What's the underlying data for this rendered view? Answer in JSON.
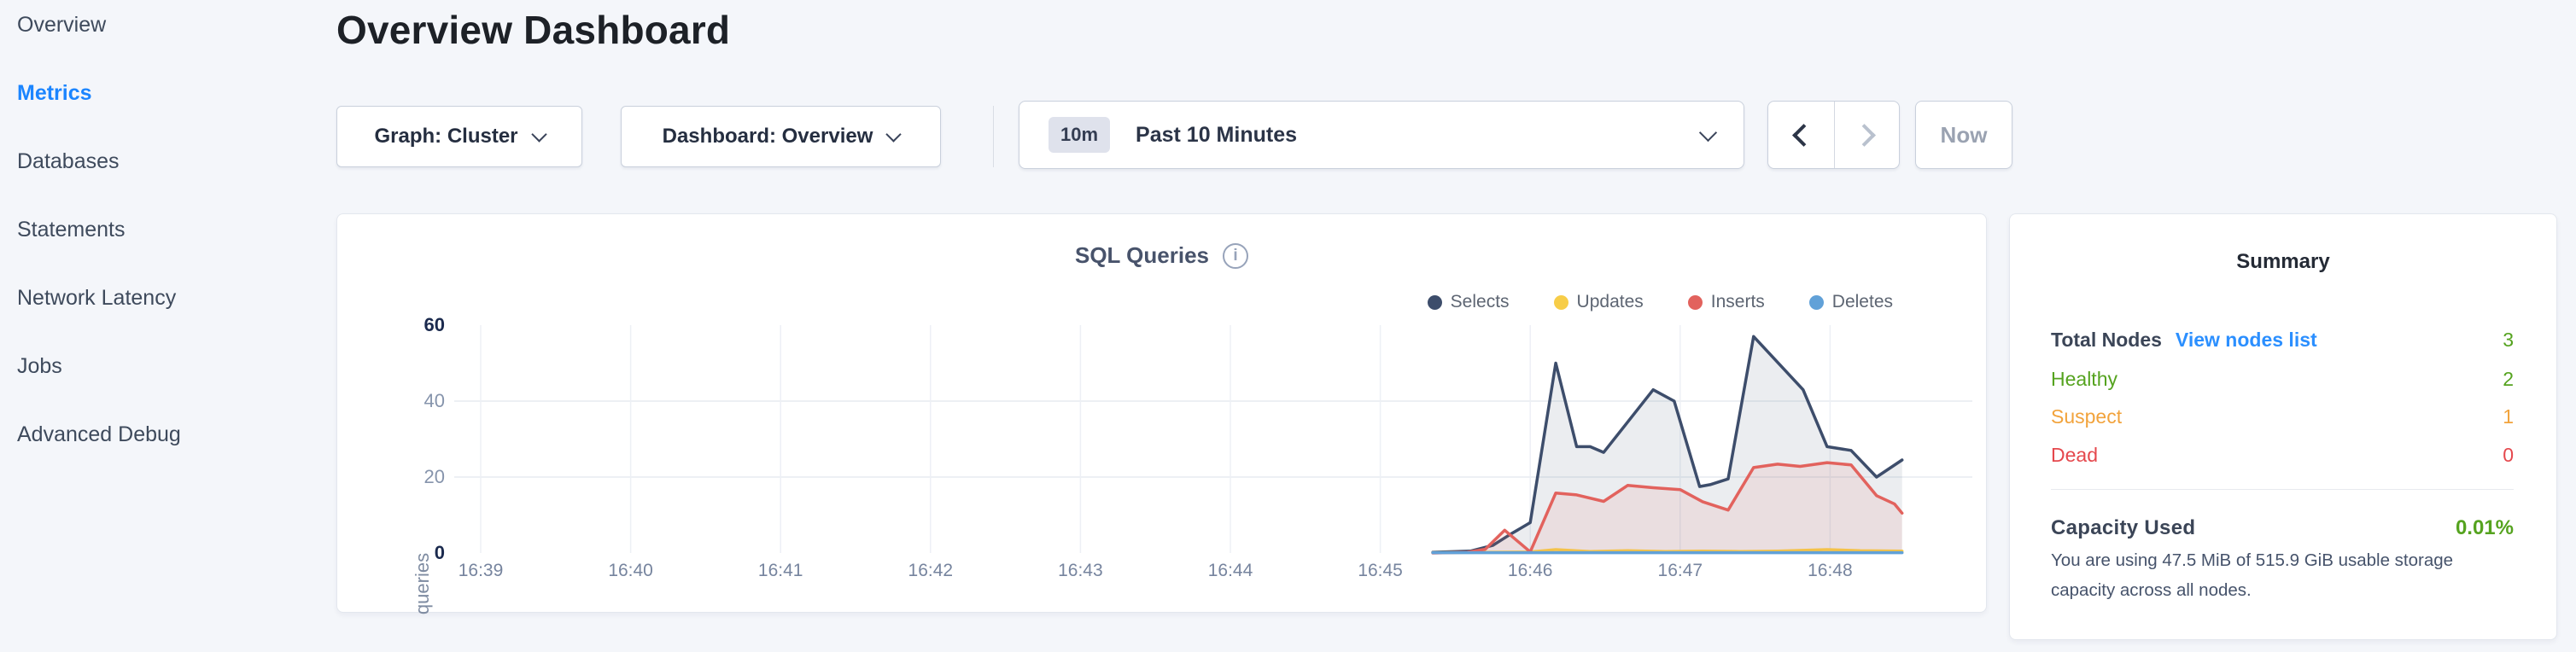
{
  "sidebar": {
    "items": [
      {
        "label": "Overview",
        "active": false
      },
      {
        "label": "Metrics",
        "active": true
      },
      {
        "label": "Databases",
        "active": false
      },
      {
        "label": "Statements",
        "active": false
      },
      {
        "label": "Network Latency",
        "active": false
      },
      {
        "label": "Jobs",
        "active": false
      },
      {
        "label": "Advanced Debug",
        "active": false
      }
    ]
  },
  "header": {
    "title": "Overview Dashboard"
  },
  "toolbar": {
    "graph_dropdown": "Graph: Cluster",
    "dashboard_dropdown": "Dashboard: Overview",
    "time_badge": "10m",
    "time_label": "Past 10 Minutes",
    "now_label": "Now"
  },
  "chart_data": {
    "type": "line",
    "title": "SQL Queries",
    "ylabel": "queries",
    "x_note": "x values are minutes after 16:39; one x tick per minute",
    "x_ticks": [
      "16:39",
      "16:40",
      "16:41",
      "16:42",
      "16:43",
      "16:44",
      "16:45",
      "16:46",
      "16:47",
      "16:48"
    ],
    "y_ticks": [
      0,
      20,
      40,
      60
    ],
    "ylim": [
      0,
      60
    ],
    "grid": true,
    "legend_position": "top-right",
    "series": [
      {
        "name": "Selects",
        "color": "#3d4d6b",
        "fill": "rgba(61,77,107,0.10)",
        "points": [
          [
            6.35,
            0.2
          ],
          [
            6.6,
            0.5
          ],
          [
            6.75,
            2
          ],
          [
            6.87,
            5
          ],
          [
            7.0,
            8
          ],
          [
            7.17,
            50
          ],
          [
            7.31,
            28
          ],
          [
            7.4,
            28
          ],
          [
            7.49,
            26.5
          ],
          [
            7.82,
            43
          ],
          [
            7.96,
            40
          ],
          [
            8.13,
            17.5
          ],
          [
            8.2,
            18
          ],
          [
            8.32,
            19.5
          ],
          [
            8.49,
            57
          ],
          [
            8.82,
            43
          ],
          [
            8.98,
            28
          ],
          [
            9.14,
            27
          ],
          [
            9.31,
            20
          ],
          [
            9.48,
            24.5
          ]
        ]
      },
      {
        "name": "Updates",
        "color": "#f7cd48",
        "fill": "rgba(247,205,72,0.12)",
        "points": [
          [
            6.35,
            0.1
          ],
          [
            6.75,
            0.2
          ],
          [
            7.0,
            0.3
          ],
          [
            7.17,
            0.9
          ],
          [
            7.4,
            0.4
          ],
          [
            7.65,
            0.6
          ],
          [
            7.9,
            0.4
          ],
          [
            8.15,
            0.5
          ],
          [
            8.4,
            0.4
          ],
          [
            8.65,
            0.5
          ],
          [
            8.98,
            0.9
          ],
          [
            9.2,
            0.6
          ],
          [
            9.48,
            0.5
          ]
        ]
      },
      {
        "name": "Inserts",
        "color": "#e2625d",
        "fill": "rgba(226,98,93,0.10)",
        "points": [
          [
            6.35,
            0
          ],
          [
            6.58,
            0.2
          ],
          [
            6.7,
            1
          ],
          [
            6.83,
            6
          ],
          [
            7.0,
            0.3
          ],
          [
            7.17,
            15.8
          ],
          [
            7.31,
            15.3
          ],
          [
            7.49,
            13.6
          ],
          [
            7.65,
            17.8
          ],
          [
            7.82,
            17.2
          ],
          [
            8.0,
            16.7
          ],
          [
            8.15,
            13.5
          ],
          [
            8.32,
            11.3
          ],
          [
            8.49,
            22.5
          ],
          [
            8.65,
            23.4
          ],
          [
            8.8,
            22.8
          ],
          [
            8.98,
            23.8
          ],
          [
            9.14,
            23.2
          ],
          [
            9.31,
            15.1
          ],
          [
            9.43,
            12.9
          ],
          [
            9.48,
            10.5
          ]
        ]
      },
      {
        "name": "Deletes",
        "color": "#61a1d8",
        "fill": "rgba(97,161,216,0.10)",
        "points": [
          [
            6.35,
            0.1
          ],
          [
            7.0,
            0.1
          ],
          [
            7.5,
            0.1
          ],
          [
            8.0,
            0.1
          ],
          [
            8.5,
            0.1
          ],
          [
            9.0,
            0.1
          ],
          [
            9.48,
            0.1
          ]
        ]
      }
    ]
  },
  "summary": {
    "title": "Summary",
    "total_nodes_label": "Total Nodes",
    "view_nodes_link": "View nodes list",
    "total_nodes_value": "3",
    "healthy": {
      "label": "Healthy",
      "value": "2"
    },
    "suspect": {
      "label": "Suspect",
      "value": "1"
    },
    "dead": {
      "label": "Dead",
      "value": "0"
    },
    "capacity_label": "Capacity Used",
    "capacity_value": "0.01%",
    "capacity_description": "You are using 47.5 MiB of 515.9 GiB usable storage capacity across all nodes."
  },
  "colors": {
    "page_background": "#f4f6fa",
    "active_nav_blue": "#1b85ff",
    "link_blue": "#2b8fff",
    "status_green": "#55a31f",
    "status_orange": "#f2a33c",
    "status_red": "#e5484d"
  }
}
